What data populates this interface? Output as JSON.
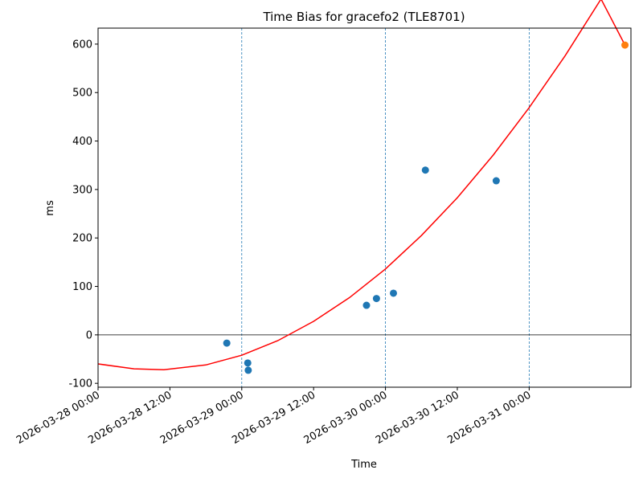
{
  "chart_data": {
    "type": "scatter",
    "title": "Time Bias for gracefo2 (TLE8701)",
    "xlabel": "Time",
    "ylabel": "ms",
    "xlim": [
      "2026-03-28 00:00",
      "2026-03-31 17:00"
    ],
    "ylim": [
      -108,
      633
    ],
    "x_ticks": [
      "2026-03-28 00:00",
      "2026-03-28 12:00",
      "2026-03-29 00:00",
      "2026-03-29 12:00",
      "2026-03-30 00:00",
      "2026-03-30 12:00",
      "2026-03-31 00:00"
    ],
    "y_ticks": [
      -100,
      0,
      100,
      200,
      300,
      400,
      500,
      600
    ],
    "vertical_lines": [
      "2026-03-28 00:00",
      "2026-03-29 00:00",
      "2026-03-30 00:00",
      "2026-03-31 00:00"
    ],
    "horizontal_line": 0,
    "series": [
      {
        "kind": "points",
        "color": "#1f77b4",
        "x": [
          "2026-03-28 21:30",
          "2026-03-29 01:00",
          "2026-03-29 01:05",
          "2026-03-29 20:50",
          "2026-03-29 22:30",
          "2026-03-30 01:20",
          "2026-03-30 06:40",
          "2026-03-30 18:30"
        ],
        "y": [
          -17,
          -58,
          -73,
          61,
          75,
          86,
          340,
          318
        ]
      },
      {
        "kind": "points",
        "color": "#ff7f0e",
        "x": [
          "2026-03-31 16:00"
        ],
        "y": [
          598
        ]
      },
      {
        "kind": "line",
        "color": "#ff0000",
        "x": [
          "2026-03-28 00:00",
          "2026-03-28 06:00",
          "2026-03-28 11:00",
          "2026-03-28 18:00",
          "2026-03-29 00:00",
          "2026-03-29 06:00",
          "2026-03-29 12:00",
          "2026-03-29 18:00",
          "2026-03-30 00:00",
          "2026-03-30 06:00",
          "2026-03-30 12:00",
          "2026-03-30 18:00",
          "2026-03-31 00:00",
          "2026-03-31 06:00",
          "2026-03-31 12:00",
          "2026-03-31 16:00"
        ],
        "y": [
          -60,
          -70,
          -72,
          -62,
          -42,
          -12,
          28,
          77,
          136,
          205,
          283,
          371,
          469,
          576,
          693,
          598
        ]
      }
    ]
  }
}
